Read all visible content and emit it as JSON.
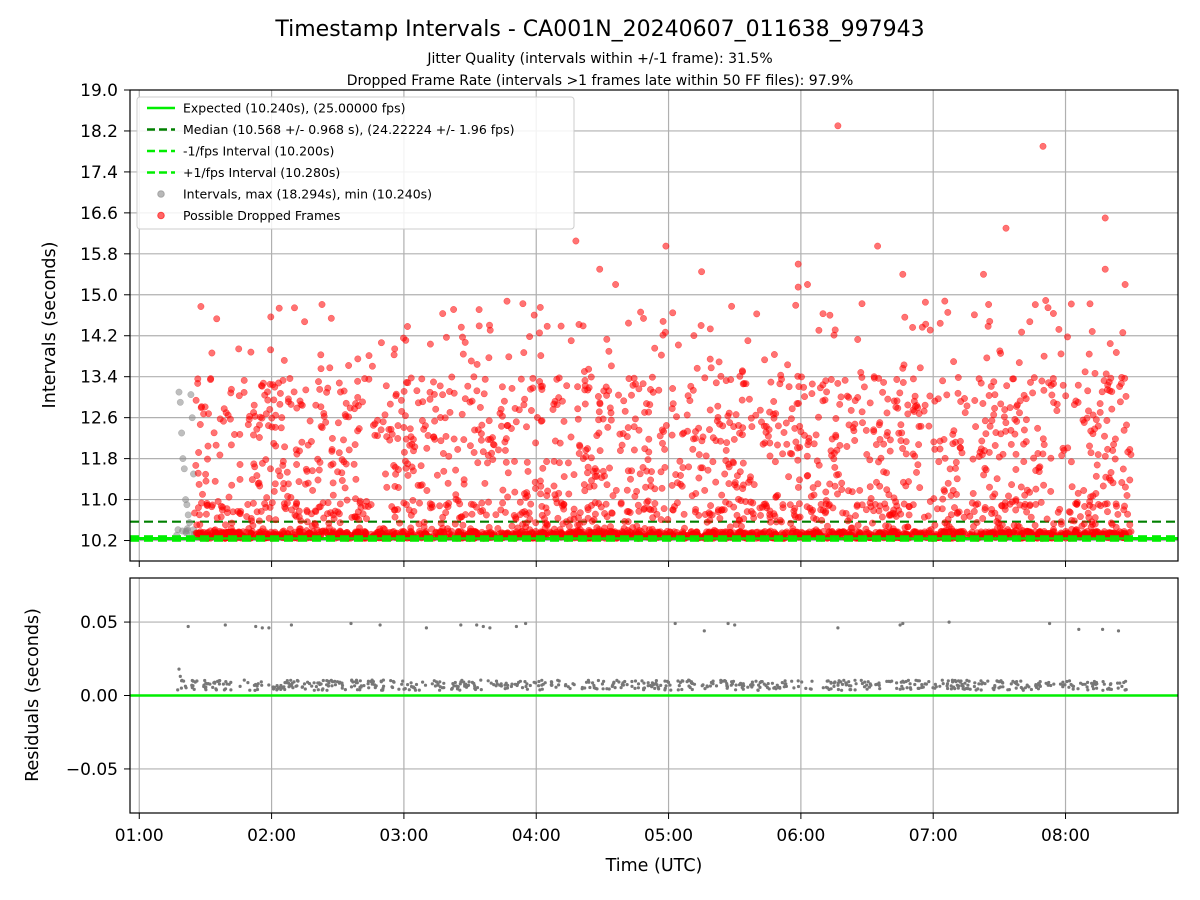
{
  "chart_data": [
    {
      "type": "scatter",
      "title": "Timestamp Intervals - CA001N_20240607_011638_997943",
      "subtitle_lines": [
        "Jitter Quality (intervals within +/-1 frame): 31.5%",
        "Dropped Frame Rate (intervals >1 frames late within 50 FF files): 97.9%"
      ],
      "xlabel": "",
      "ylabel": "Intervals (seconds)",
      "x_ticks": [
        "01:00",
        "02:00",
        "03:00",
        "04:00",
        "05:00",
        "06:00",
        "07:00",
        "08:00"
      ],
      "x_range_hours": [
        0.93,
        8.85
      ],
      "ylim": [
        9.8,
        19.0
      ],
      "y_ticks": [
        10.2,
        11.0,
        11.8,
        12.6,
        13.4,
        14.2,
        15.0,
        15.8,
        16.6,
        17.4,
        18.2,
        19.0
      ],
      "grid": true,
      "legend_position": "upper-left",
      "reference_lines": [
        {
          "name": "Expected (10.240s), (25.00000 fps)",
          "value": 10.24,
          "style": "solid",
          "color": "#00ee00"
        },
        {
          "name": "Median (10.568 +/- 0.968 s), (24.22224 +/- 1.96 fps)",
          "value": 10.568,
          "style": "dashed",
          "color": "#008000"
        },
        {
          "name": "-1/fps Interval (10.200s)",
          "value": 10.2,
          "style": "dashed",
          "color": "#00ee00"
        },
        {
          "name": "+1/fps Interval (10.280s)",
          "value": 10.28,
          "style": "dashed",
          "color": "#00ee00"
        }
      ],
      "series": [
        {
          "name": "Intervals, max (18.294s), min (10.240s)",
          "color": "#888888",
          "x_start": "01:17",
          "x_end": "01:26",
          "approx_points": [
            [
              1.3,
              13.1
            ],
            [
              1.31,
              12.9
            ],
            [
              1.32,
              12.3
            ],
            [
              1.33,
              11.8
            ],
            [
              1.34,
              11.6
            ],
            [
              1.35,
              11.0
            ],
            [
              1.36,
              10.9
            ],
            [
              1.37,
              10.7
            ],
            [
              1.38,
              10.55
            ],
            [
              1.39,
              13.05
            ],
            [
              1.4,
              12.6
            ],
            [
              1.41,
              11.5
            ]
          ]
        },
        {
          "name": "Possible Dropped Frames",
          "color": "#ff0000",
          "x_start": "01:25",
          "x_end": "08:30",
          "y_min": 10.24,
          "y_max": 18.294,
          "highlighted_points": [
            [
              6.28,
              18.3
            ],
            [
              7.83,
              17.9
            ],
            [
              8.3,
              16.5
            ],
            [
              4.3,
              16.05
            ],
            [
              7.55,
              16.3
            ],
            [
              6.58,
              15.95
            ],
            [
              4.98,
              15.95
            ],
            [
              5.98,
              15.6
            ],
            [
              4.48,
              15.5
            ],
            [
              5.25,
              15.45
            ],
            [
              7.38,
              15.4
            ],
            [
              6.77,
              15.4
            ],
            [
              8.3,
              15.5
            ],
            [
              8.45,
              15.2
            ],
            [
              4.6,
              15.2
            ],
            [
              5.98,
              15.15
            ],
            [
              6.05,
              15.2
            ]
          ]
        }
      ]
    },
    {
      "type": "scatter",
      "ylabel": "Residuals (seconds)",
      "xlabel": "Time (UTC)",
      "x_ticks": [
        "01:00",
        "02:00",
        "03:00",
        "04:00",
        "05:00",
        "06:00",
        "07:00",
        "08:00"
      ],
      "ylim": [
        -0.08,
        0.08
      ],
      "y_ticks": [
        0.05,
        0.0,
        -0.05
      ],
      "y_tick_labels": [
        "0.05",
        "0.00",
        "−0.05"
      ],
      "grid": true,
      "reference_lines": [
        {
          "name": "zero",
          "value": 0.0,
          "style": "solid",
          "color": "#00ee00"
        }
      ],
      "series": [
        {
          "name": "residuals",
          "color": "#777777",
          "typical_value": 0.007,
          "outlier_value": 0.048,
          "outlier_points": [
            [
              1.37,
              0.047
            ],
            [
              1.65,
              0.048
            ],
            [
              1.88,
              0.047
            ],
            [
              1.93,
              0.046
            ],
            [
              1.98,
              0.046
            ],
            [
              2.15,
              0.048
            ],
            [
              2.6,
              0.049
            ],
            [
              2.82,
              0.048
            ],
            [
              3.17,
              0.046
            ],
            [
              3.43,
              0.048
            ],
            [
              3.55,
              0.048
            ],
            [
              3.6,
              0.047
            ],
            [
              3.65,
              0.046
            ],
            [
              3.85,
              0.047
            ],
            [
              3.92,
              0.049
            ],
            [
              5.05,
              0.049
            ],
            [
              5.27,
              0.044
            ],
            [
              5.45,
              0.049
            ],
            [
              5.5,
              0.048
            ],
            [
              6.28,
              0.046
            ],
            [
              6.75,
              0.048
            ],
            [
              6.77,
              0.049
            ],
            [
              7.12,
              0.05
            ],
            [
              7.88,
              0.049
            ],
            [
              8.1,
              0.045
            ],
            [
              8.28,
              0.045
            ],
            [
              8.4,
              0.044
            ]
          ],
          "early_points": [
            [
              1.3,
              0.018
            ],
            [
              1.31,
              0.013
            ],
            [
              1.32,
              0.01
            ]
          ]
        }
      ]
    }
  ]
}
